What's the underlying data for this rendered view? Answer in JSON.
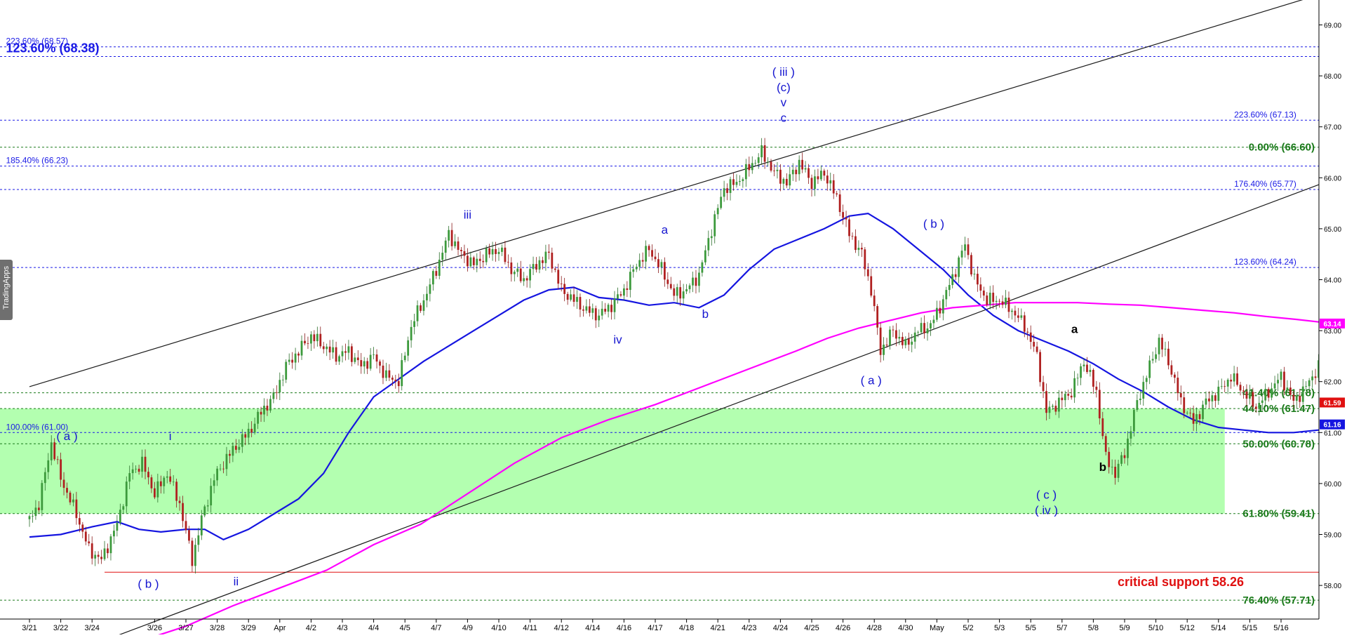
{
  "chart_data": {
    "type": "line",
    "title": "",
    "xlabel": "",
    "ylabel": "",
    "ylim": [
      56.7,
      69.5
    ],
    "y_ticks": [
      "69.00",
      "68.00",
      "67.00",
      "66.00",
      "65.00",
      "64.00",
      "63.00",
      "62.00",
      "61.00",
      "60.00",
      "59.00",
      "58.00"
    ],
    "y_tick_values": [
      69,
      68,
      67,
      66,
      65,
      64,
      63,
      62,
      61,
      60,
      59,
      58
    ],
    "x_ticks": [
      "3/21",
      "3/22",
      "3/24",
      "3/26",
      "3/27",
      "3/28",
      "3/29",
      "Apr",
      "4/2",
      "4/3",
      "4/4",
      "4/5",
      "4/7",
      "4/9",
      "4/10",
      "4/11",
      "4/12",
      "4/14",
      "4/16",
      "4/17",
      "4/18",
      "4/21",
      "4/23",
      "4/24",
      "4/25",
      "4/26",
      "4/28",
      "4/30",
      "May",
      "5/2",
      "5/3",
      "5/5",
      "5/7",
      "5/8",
      "5/9",
      "5/10",
      "5/12",
      "5/14",
      "5/15",
      "5/16"
    ],
    "x_tick_index": [
      0,
      1,
      2,
      4,
      5,
      6,
      7,
      8,
      9,
      10,
      11,
      12,
      13,
      14,
      15,
      16,
      17,
      18,
      19,
      20,
      21,
      22,
      23,
      24,
      25,
      26,
      27,
      28,
      29,
      30,
      31,
      32,
      33,
      34,
      35,
      36,
      37,
      38,
      39,
      40
    ],
    "price_anchors": [
      [
        0,
        59.3
      ],
      [
        0.3,
        59.6
      ],
      [
        0.7,
        60.8
      ],
      [
        1.0,
        60.1
      ],
      [
        1.5,
        59.4
      ],
      [
        1.9,
        58.7
      ],
      [
        2.3,
        58.5
      ],
      [
        2.8,
        59.2
      ],
      [
        3.2,
        60.2
      ],
      [
        3.6,
        60.4
      ],
      [
        4.0,
        59.8
      ],
      [
        4.4,
        60.2
      ],
      [
        4.8,
        59.6
      ],
      [
        5.2,
        58.5
      ],
      [
        5.5,
        59.3
      ],
      [
        5.9,
        60.1
      ],
      [
        6.3,
        60.5
      ],
      [
        6.7,
        60.8
      ],
      [
        7.0,
        61.0
      ],
      [
        7.4,
        61.4
      ],
      [
        7.8,
        61.7
      ],
      [
        8.2,
        62.3
      ],
      [
        8.6,
        62.6
      ],
      [
        9.0,
        62.9
      ],
      [
        9.4,
        62.7
      ],
      [
        9.8,
        62.5
      ],
      [
        10.2,
        62.6
      ],
      [
        10.6,
        62.3
      ],
      [
        11.0,
        62.5
      ],
      [
        11.4,
        62.1
      ],
      [
        11.8,
        62.0
      ],
      [
        12.2,
        63.1
      ],
      [
        12.6,
        63.6
      ],
      [
        13.0,
        64.2
      ],
      [
        13.4,
        64.9
      ],
      [
        13.8,
        64.5
      ],
      [
        14.2,
        64.3
      ],
      [
        14.6,
        64.5
      ],
      [
        15.0,
        64.6
      ],
      [
        15.4,
        64.2
      ],
      [
        15.8,
        64.0
      ],
      [
        16.2,
        64.3
      ],
      [
        16.6,
        64.5
      ],
      [
        17.0,
        63.8
      ],
      [
        17.4,
        63.6
      ],
      [
        17.8,
        63.4
      ],
      [
        18.2,
        63.3
      ],
      [
        18.6,
        63.5
      ],
      [
        19.0,
        63.8
      ],
      [
        19.4,
        64.3
      ],
      [
        19.8,
        64.6
      ],
      [
        20.2,
        64.2
      ],
      [
        20.6,
        63.7
      ],
      [
        21.0,
        63.8
      ],
      [
        21.4,
        64.1
      ],
      [
        21.8,
        65.0
      ],
      [
        22.2,
        65.8
      ],
      [
        22.6,
        65.9
      ],
      [
        23.0,
        66.2
      ],
      [
        23.4,
        66.5
      ],
      [
        23.8,
        66.1
      ],
      [
        24.2,
        65.9
      ],
      [
        24.6,
        66.3
      ],
      [
        25.0,
        65.9
      ],
      [
        25.4,
        66.1
      ],
      [
        25.8,
        65.6
      ],
      [
        26.2,
        64.9
      ],
      [
        26.6,
        64.5
      ],
      [
        26.9,
        63.8
      ],
      [
        27.2,
        62.6
      ],
      [
        27.6,
        63.0
      ],
      [
        28.0,
        62.7
      ],
      [
        28.4,
        63.0
      ],
      [
        28.8,
        63.1
      ],
      [
        29.2,
        63.6
      ],
      [
        29.6,
        64.2
      ],
      [
        29.9,
        64.7
      ],
      [
        30.2,
        64.0
      ],
      [
        30.6,
        63.6
      ],
      [
        31.0,
        63.6
      ],
      [
        31.4,
        63.4
      ],
      [
        31.8,
        63.1
      ],
      [
        32.2,
        62.5
      ],
      [
        32.5,
        61.4
      ],
      [
        32.9,
        61.6
      ],
      [
        33.3,
        61.8
      ],
      [
        33.7,
        62.4
      ],
      [
        34.1,
        61.8
      ],
      [
        34.4,
        60.5
      ],
      [
        34.7,
        60.2
      ],
      [
        35.0,
        60.6
      ],
      [
        35.4,
        61.6
      ],
      [
        35.8,
        62.3
      ],
      [
        36.1,
        62.8
      ],
      [
        36.4,
        62.4
      ],
      [
        36.8,
        61.6
      ],
      [
        37.2,
        61.2
      ],
      [
        37.6,
        61.6
      ],
      [
        38.0,
        61.8
      ],
      [
        38.4,
        62.1
      ],
      [
        38.8,
        61.8
      ],
      [
        39.2,
        61.5
      ],
      [
        39.6,
        61.8
      ],
      [
        40.0,
        62.1
      ],
      [
        40.4,
        61.6
      ],
      [
        40.8,
        61.9
      ],
      [
        41.2,
        62.3
      ],
      [
        41.6,
        61.9
      ],
      [
        42.0,
        61.59
      ]
    ],
    "series": [
      {
        "name": "",
        "color": "#1515e0",
        "points": [
          [
            0,
            58.95
          ],
          [
            1,
            59.0
          ],
          [
            2,
            59.15
          ],
          [
            2.8,
            59.25
          ],
          [
            3.5,
            59.1
          ],
          [
            4.2,
            59.05
          ],
          [
            5,
            59.1
          ],
          [
            5.6,
            59.1
          ],
          [
            6.2,
            58.9
          ],
          [
            7,
            59.1
          ],
          [
            7.8,
            59.4
          ],
          [
            8.6,
            59.7
          ],
          [
            9.4,
            60.2
          ],
          [
            10.2,
            61.0
          ],
          [
            11,
            61.7
          ],
          [
            11.8,
            62.05
          ],
          [
            12.6,
            62.4
          ],
          [
            13.4,
            62.7
          ],
          [
            14.2,
            63.0
          ],
          [
            15,
            63.3
          ],
          [
            15.8,
            63.6
          ],
          [
            16.6,
            63.8
          ],
          [
            17.4,
            63.85
          ],
          [
            18.2,
            63.65
          ],
          [
            19,
            63.6
          ],
          [
            19.8,
            63.5
          ],
          [
            20.6,
            63.55
          ],
          [
            21.4,
            63.45
          ],
          [
            22.2,
            63.7
          ],
          [
            23,
            64.2
          ],
          [
            23.8,
            64.6
          ],
          [
            24.6,
            64.8
          ],
          [
            25.4,
            65.0
          ],
          [
            26.2,
            65.25
          ],
          [
            26.8,
            65.3
          ],
          [
            27.6,
            65.0
          ],
          [
            28.4,
            64.6
          ],
          [
            29.2,
            64.2
          ],
          [
            30,
            63.7
          ],
          [
            30.8,
            63.3
          ],
          [
            31.6,
            63.0
          ],
          [
            32.4,
            62.8
          ],
          [
            33.2,
            62.6
          ],
          [
            34,
            62.35
          ],
          [
            34.8,
            62.05
          ],
          [
            35.6,
            61.8
          ],
          [
            36.4,
            61.5
          ],
          [
            37.2,
            61.25
          ],
          [
            38,
            61.1
          ],
          [
            38.8,
            61.05
          ],
          [
            39.6,
            61.0
          ],
          [
            40.4,
            61.0
          ],
          [
            41.2,
            61.05
          ],
          [
            42,
            61.16
          ]
        ]
      },
      {
        "name": "",
        "color": "#ff00ff",
        "points": [
          [
            3.5,
            56.9
          ],
          [
            5,
            57.2
          ],
          [
            6.5,
            57.6
          ],
          [
            8,
            57.95
          ],
          [
            9.5,
            58.3
          ],
          [
            11,
            58.8
          ],
          [
            12.5,
            59.2
          ],
          [
            14,
            59.8
          ],
          [
            15.5,
            60.4
          ],
          [
            17,
            60.9
          ],
          [
            18.5,
            61.25
          ],
          [
            20,
            61.55
          ],
          [
            21.5,
            61.9
          ],
          [
            23,
            62.25
          ],
          [
            24.5,
            62.6
          ],
          [
            25.5,
            62.85
          ],
          [
            26.5,
            63.05
          ],
          [
            27.5,
            63.2
          ],
          [
            28.5,
            63.35
          ],
          [
            29.5,
            63.45
          ],
          [
            30.5,
            63.5
          ],
          [
            31.5,
            63.55
          ],
          [
            32.5,
            63.55
          ],
          [
            33.5,
            63.55
          ],
          [
            34.5,
            63.52
          ],
          [
            35.5,
            63.5
          ],
          [
            36.5,
            63.45
          ],
          [
            37.5,
            63.4
          ],
          [
            38.5,
            63.35
          ],
          [
            39.5,
            63.28
          ],
          [
            40.5,
            63.22
          ],
          [
            41.5,
            63.15
          ],
          [
            42,
            63.14
          ]
        ]
      }
    ],
    "channel_lines": [
      {
        "color": "#1a1a1a",
        "from": [
          0,
          61.9
        ],
        "to": [
          45,
          70.3
        ]
      },
      {
        "color": "#1a1a1a",
        "from": [
          1,
          56.6
        ],
        "to": [
          47,
          67.2
        ]
      }
    ],
    "green_zone": {
      "color": "#b3ffb0",
      "x_from": 0,
      "x_to": 38.2,
      "y_from": 59.41,
      "y_to": 61.47
    },
    "hlines": [
      {
        "y": 68.57,
        "color": "#1a1ae6",
        "style": "dash",
        "label": "223.60% (68.57)",
        "label_x": 0.1,
        "label_side": "left",
        "size": "small"
      },
      {
        "y": 68.38,
        "color": "#1a1ae6",
        "style": "dash",
        "label": "123.60% (68.38)",
        "label_x": 0.1,
        "label_side": "left",
        "size": "big"
      },
      {
        "y": 66.23,
        "color": "#1a1ae6",
        "style": "dash",
        "label": "185.40% (66.23)",
        "label_x": 0.1,
        "label_side": "left",
        "size": "small"
      },
      {
        "y": 61.0,
        "color": "#1a1ae6",
        "style": "dash",
        "label": "100.00% (61.00)",
        "label_x": 0.1,
        "label_side": "left",
        "size": "small"
      },
      {
        "y": 67.13,
        "color": "#1a1ae6",
        "style": "dash",
        "label": "223.60% (67.13)",
        "label_x": 38.5,
        "label_side": "left",
        "size": "small"
      },
      {
        "y": 65.77,
        "color": "#1a1ae6",
        "style": "dash",
        "label": "176.40% (65.77)",
        "label_x": 38.5,
        "label_side": "left",
        "size": "small"
      },
      {
        "y": 64.24,
        "color": "#1a1ae6",
        "style": "dash",
        "label": "123.60% (64.24)",
        "label_x": 38.5,
        "label_side": "left",
        "size": "small"
      },
      {
        "y": 66.6,
        "color": "#1a7a1a",
        "style": "dash",
        "label": "0.00% (66.60)",
        "label_side": "right",
        "size": "med"
      },
      {
        "y": 61.78,
        "color": "#1a7a1a",
        "style": "dash",
        "label": "41.40% (61.78)",
        "label_side": "right",
        "size": "med"
      },
      {
        "y": 61.47,
        "color": "#1a7a1a",
        "style": "dash",
        "label": "44.10% (61.47)",
        "label_side": "right",
        "size": "med"
      },
      {
        "y": 60.78,
        "color": "#1a7a1a",
        "style": "dash",
        "label": "50.00% (60.78)",
        "label_side": "right",
        "size": "med"
      },
      {
        "y": 59.41,
        "color": "#1a7a1a",
        "style": "dash",
        "label": "61.80% (59.41)",
        "label_side": "right",
        "size": "med"
      },
      {
        "y": 57.71,
        "color": "#1a7a1a",
        "style": "dash",
        "label": "76.40% (57.71)",
        "label_side": "right",
        "size": "med"
      },
      {
        "y": 58.26,
        "color": "#e01010",
        "style": "solid",
        "x_from": 2.4,
        "label": "critical support 58.26",
        "label_x": 35.0,
        "label_side": "center",
        "size": "big"
      }
    ],
    "wave_labels": [
      {
        "text": "( a )",
        "x": 1.2,
        "y": 60.85,
        "color": "#1515d0"
      },
      {
        "text": "i",
        "x": 4.5,
        "y": 60.85,
        "color": "#1515d0"
      },
      {
        "text": "( b )",
        "x": 3.8,
        "y": 57.95,
        "color": "#1515d0"
      },
      {
        "text": "ii",
        "x": 6.6,
        "y": 58.0,
        "color": "#1515d0"
      },
      {
        "text": "iii",
        "x": 14.0,
        "y": 65.2,
        "color": "#1515d0"
      },
      {
        "text": "iv",
        "x": 18.8,
        "y": 62.75,
        "color": "#1515d0"
      },
      {
        "text": "a",
        "x": 20.3,
        "y": 64.9,
        "color": "#1515d0"
      },
      {
        "text": "b",
        "x": 21.6,
        "y": 63.25,
        "color": "#1515d0"
      },
      {
        "text": "( iii )",
        "x": 24.1,
        "y": 68.0,
        "color": "#1515d0"
      },
      {
        "text": "(c)",
        "x": 24.1,
        "y": 67.7,
        "color": "#1515d0"
      },
      {
        "text": "v",
        "x": 24.1,
        "y": 67.4,
        "color": "#1515d0"
      },
      {
        "text": "c",
        "x": 24.1,
        "y": 67.1,
        "color": "#1515d0"
      },
      {
        "text": "( a )",
        "x": 26.9,
        "y": 61.95,
        "color": "#1515d0"
      },
      {
        "text": "( b )",
        "x": 28.9,
        "y": 65.02,
        "color": "#1515d0"
      },
      {
        "text": "( c )",
        "x": 32.5,
        "y": 59.7,
        "color": "#1515d0"
      },
      {
        "text": "( iv )",
        "x": 32.5,
        "y": 59.4,
        "color": "#1515d0"
      },
      {
        "text": "a",
        "x": 33.4,
        "y": 62.95,
        "color": "#000000"
      },
      {
        "text": "b",
        "x": 34.3,
        "y": 60.25,
        "color": "#000000"
      }
    ],
    "price_badges": [
      {
        "text": "63.14",
        "y": 63.14,
        "bg": "#ff00ff",
        "fg": "#ffffff"
      },
      {
        "text": "61.59",
        "y": 61.59,
        "bg": "#e01010",
        "fg": "#ffffff"
      },
      {
        "text": "61.16",
        "y": 61.16,
        "bg": "#1515e0",
        "fg": "#ffffff"
      }
    ],
    "grid": false,
    "legend": "none"
  },
  "watermark": {
    "text": "TradingApps"
  }
}
